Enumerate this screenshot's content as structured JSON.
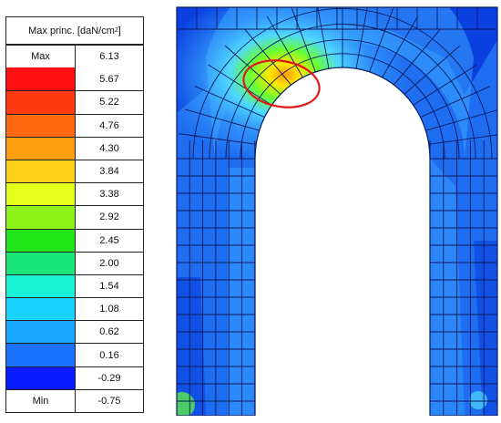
{
  "legend": {
    "title": "Max princ. [daN/cm",
    "title_sup": "2",
    "title_end": "]",
    "max_label": "Max",
    "max_value": "6.13",
    "min_label": "Min",
    "min_value": "-0.75",
    "bands": [
      {
        "value": "5.67",
        "color": "#ff1010"
      },
      {
        "value": "5.22",
        "color": "#ff3a10"
      },
      {
        "value": "4.76",
        "color": "#ff6a10"
      },
      {
        "value": "4.30",
        "color": "#ff9e10"
      },
      {
        "value": "3.84",
        "color": "#ffd21a"
      },
      {
        "value": "3.38",
        "color": "#e4ff1a"
      },
      {
        "value": "2.92",
        "color": "#8cf21a"
      },
      {
        "value": "2.45",
        "color": "#22e61a"
      },
      {
        "value": "2.00",
        "color": "#1ae67a"
      },
      {
        "value": "1.54",
        "color": "#1af2d6"
      },
      {
        "value": "1.08",
        "color": "#1ad2ff"
      },
      {
        "value": "0.62",
        "color": "#1aa6ff"
      },
      {
        "value": "0.16",
        "color": "#1a72ff"
      },
      {
        "value": "-0.29",
        "color": "#0a1aff"
      }
    ]
  },
  "model": {
    "colors": {
      "base": "#1f6df0",
      "dark": "#0a3fe0",
      "light": "#3aa6ff",
      "cyan": "#4fd8ff",
      "green": "#66ff33",
      "yellow": "#ffe500",
      "orange": "#ff9a00",
      "mesh": "#0a1a60",
      "highlight": "#e01818"
    }
  }
}
